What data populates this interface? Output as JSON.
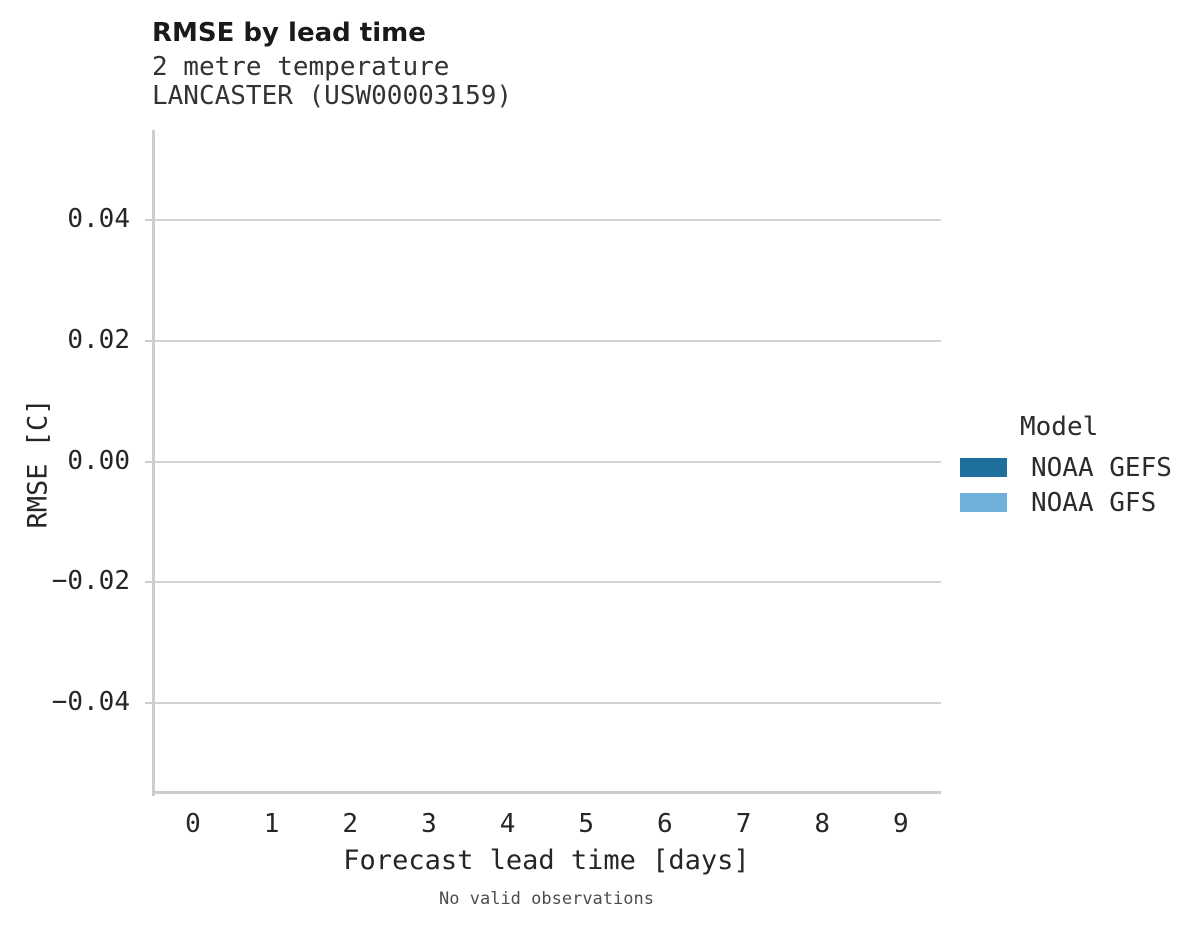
{
  "header": {
    "title": "RMSE by lead time",
    "subtitle_line1": "2 metre temperature",
    "subtitle_line2": "LANCASTER (USW00003159)"
  },
  "chart_data": {
    "type": "line",
    "title": "RMSE by lead time",
    "subtitle": [
      "2 metre temperature",
      "LANCASTER (USW00003159)"
    ],
    "xlabel": "Forecast lead time [days]",
    "ylabel": "RMSE [C]",
    "xlim": [
      -0.52,
      9.51
    ],
    "ylim": [
      -0.055,
      0.055
    ],
    "grid": "horizontal-only",
    "x_ticks": [
      {
        "value": 0,
        "label": "0"
      },
      {
        "value": 1,
        "label": "1"
      },
      {
        "value": 2,
        "label": "2"
      },
      {
        "value": 3,
        "label": "3"
      },
      {
        "value": 4,
        "label": "4"
      },
      {
        "value": 5,
        "label": "5"
      },
      {
        "value": 6,
        "label": "6"
      },
      {
        "value": 7,
        "label": "7"
      },
      {
        "value": 8,
        "label": "8"
      },
      {
        "value": 9,
        "label": "9"
      }
    ],
    "y_ticks": [
      {
        "value": 0.04,
        "label": "0.04"
      },
      {
        "value": 0.02,
        "label": "0.02"
      },
      {
        "value": 0.0,
        "label": "0.00"
      },
      {
        "value": -0.02,
        "label": "−0.02"
      },
      {
        "value": -0.04,
        "label": "−0.04"
      }
    ],
    "legend": {
      "title": "Model",
      "position": "right",
      "entries": [
        {
          "label": "NOAA GEFS",
          "color": "#1f6f9c"
        },
        {
          "label": "NOAA GFS",
          "color": "#6fb1da"
        }
      ]
    },
    "series": [
      {
        "name": "NOAA GEFS",
        "color": "#1f6f9c",
        "x": [],
        "y": []
      },
      {
        "name": "NOAA GFS",
        "color": "#6fb1da",
        "x": [],
        "y": []
      }
    ],
    "annotation": "No valid observations"
  },
  "colors": {
    "gridline": "#d2d2d2",
    "spine": "#cdcdcd",
    "tick_text": "#262626",
    "title_text": "#1a1a1a",
    "subtitle_text": "#333333",
    "caption_text": "#4d4d4d"
  }
}
